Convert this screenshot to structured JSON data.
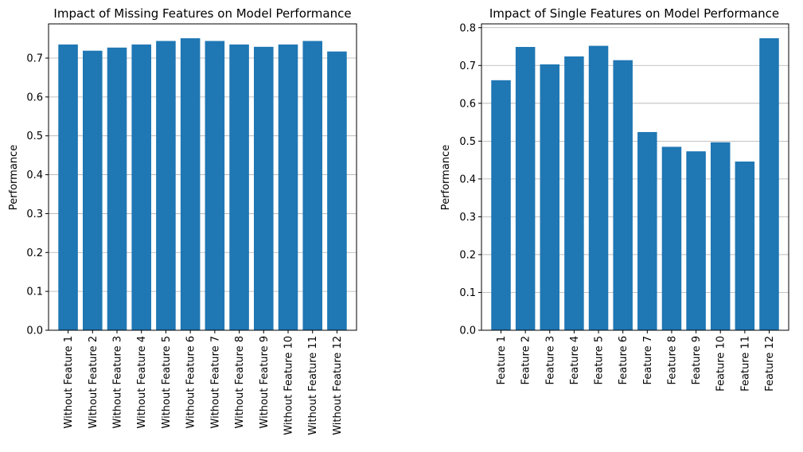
{
  "colors": {
    "bar": "#1f77b4",
    "grid": "#b0b0b0",
    "axes": "#000000",
    "background": "#ffffff"
  },
  "chart_data": [
    {
      "type": "bar",
      "title": "Impact of Missing Features on Model Performance",
      "xlabel": "",
      "ylabel": "Performance",
      "categories": [
        "Without Feature 1",
        "Without Feature 2",
        "Without Feature 3",
        "Without Feature 4",
        "Without Feature 5",
        "Without Feature 6",
        "Without Feature 7",
        "Without Feature 8",
        "Without Feature 9",
        "Without Feature 10",
        "Without Feature 11",
        "Without Feature 12"
      ],
      "values": [
        0.735,
        0.719,
        0.727,
        0.735,
        0.744,
        0.751,
        0.744,
        0.735,
        0.729,
        0.735,
        0.744,
        0.717
      ],
      "ylim": [
        0,
        0.788
      ],
      "yticks": [
        0.0,
        0.1,
        0.2,
        0.3,
        0.4,
        0.5,
        0.6,
        0.7
      ],
      "ytick_labels": [
        "0.0",
        "0.1",
        "0.2",
        "0.3",
        "0.4",
        "0.5",
        "0.6",
        "0.7"
      ],
      "grid": "y",
      "xtick_rotation": "vertical"
    },
    {
      "type": "bar",
      "title": "Impact of Single Features on Model Performance",
      "xlabel": "",
      "ylabel": "Performance",
      "categories": [
        "Feature 1",
        "Feature 2",
        "Feature 3",
        "Feature 4",
        "Feature 5",
        "Feature 6",
        "Feature 7",
        "Feature 8",
        "Feature 9",
        "Feature 10",
        "Feature 11",
        "Feature 12"
      ],
      "values": [
        0.661,
        0.749,
        0.703,
        0.724,
        0.752,
        0.714,
        0.524,
        0.485,
        0.473,
        0.497,
        0.446,
        0.772
      ],
      "ylim": [
        0,
        0.81
      ],
      "yticks": [
        0.0,
        0.1,
        0.2,
        0.3,
        0.4,
        0.5,
        0.6,
        0.7,
        0.8
      ],
      "ytick_labels": [
        "0.0",
        "0.1",
        "0.2",
        "0.3",
        "0.4",
        "0.5",
        "0.6",
        "0.7",
        "0.8"
      ],
      "grid": "y",
      "xtick_rotation": "vertical"
    }
  ]
}
